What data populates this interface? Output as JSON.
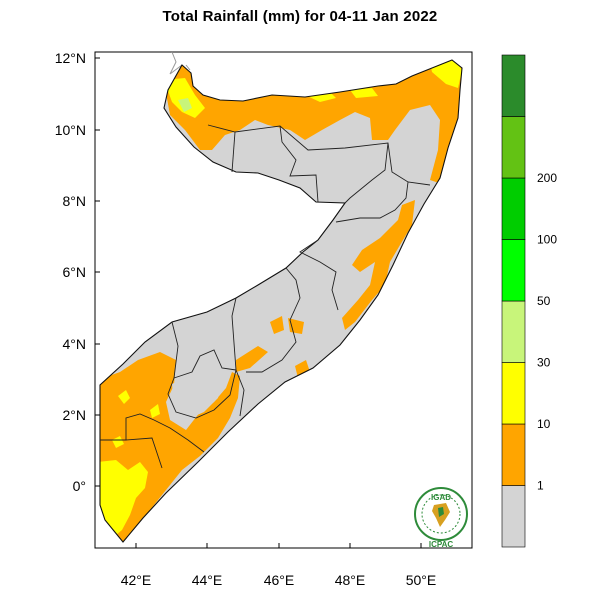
{
  "title": "Total Rainfall (mm) for 04-11 Jan 2022",
  "map": {
    "region": "Somalia",
    "lat_ticks": [
      "12°N",
      "10°N",
      "8°N",
      "6°N",
      "4°N",
      "2°N",
      "0°"
    ],
    "lon_ticks": [
      "42°E",
      "44°E",
      "46°E",
      "48°E",
      "50°E"
    ]
  },
  "legend": {
    "bins": [
      {
        "color": "#d4d4d4"
      },
      {
        "color": "#ffa500"
      },
      {
        "color": "#ffff00"
      },
      {
        "color": "#c8f57a"
      },
      {
        "color": "#00ff00"
      },
      {
        "color": "#00cd00"
      },
      {
        "color": "#63c214"
      },
      {
        "color": "#2b8b2b"
      }
    ],
    "labels": [
      "1",
      "10",
      "30",
      "50",
      "100",
      "200"
    ]
  },
  "logo": {
    "top_text": "IGAD",
    "bottom_text": "ICPAC",
    "colors": {
      "ring": "#2e8b3a",
      "map": "#d8a020"
    }
  }
}
